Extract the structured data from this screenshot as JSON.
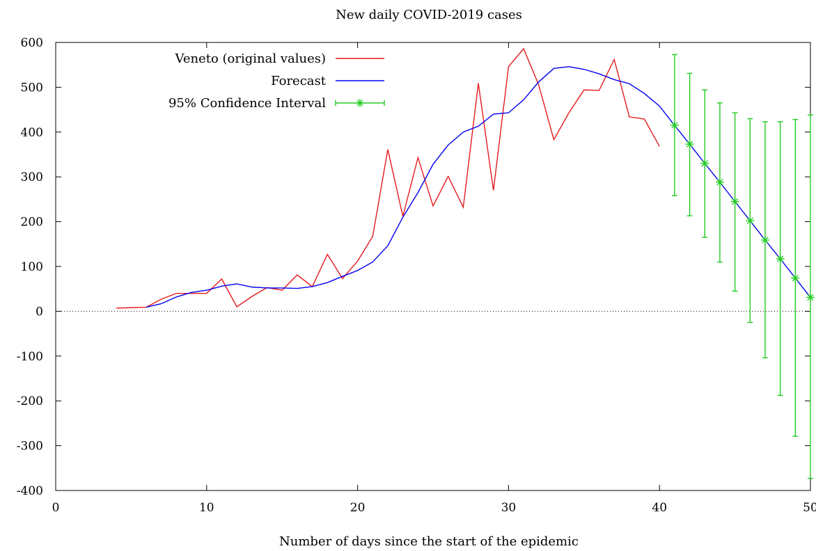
{
  "chart_data": {
    "type": "line",
    "title": "New daily COVID-2019 cases",
    "xlabel": "Number of days since the start of the epidemic",
    "ylabel": "",
    "xlim": [
      0,
      50
    ],
    "ylim": [
      -400,
      600
    ],
    "xticks": [
      "0",
      "10",
      "20",
      "30",
      "40",
      "50"
    ],
    "yticks": [
      "600",
      "500",
      "400",
      "300",
      "200",
      "100",
      "0",
      "-100",
      "-200",
      "-300",
      "-400"
    ],
    "grid": false,
    "legend_position": "top-left",
    "series": [
      {
        "name": "Veneto (original values)",
        "color": "#e41a1c",
        "x": [
          4,
          5,
          6,
          7,
          8,
          9,
          10,
          11,
          12,
          13,
          14,
          15,
          16,
          17,
          18,
          19,
          20,
          21,
          22,
          23,
          24,
          25,
          26,
          27,
          28,
          29,
          30,
          31,
          32,
          33,
          34,
          35,
          36,
          37,
          38,
          39,
          40
        ],
        "y": [
          7,
          8,
          9,
          27,
          40,
          40,
          40,
          72,
          10,
          33,
          53,
          47,
          81,
          55,
          127,
          73,
          112,
          167,
          361,
          212,
          343,
          235,
          301,
          232,
          509,
          270,
          546,
          586,
          505,
          383,
          443,
          494,
          493,
          562,
          434,
          429,
          368
        ]
      },
      {
        "name": "Forecast",
        "color": "#0000ee",
        "x": [
          6,
          7,
          8,
          9,
          10,
          11,
          12,
          13,
          14,
          15,
          16,
          17,
          18,
          19,
          20,
          21,
          22,
          23,
          24,
          25,
          26,
          27,
          28,
          29,
          30,
          31,
          32,
          33,
          34,
          35,
          36,
          37,
          38,
          39,
          40,
          41,
          42,
          43,
          44,
          45,
          46,
          47,
          48,
          49,
          50
        ],
        "y": [
          9,
          17,
          32,
          42,
          47,
          56,
          61,
          54,
          52,
          52,
          51,
          55,
          64,
          78,
          91,
          110,
          146,
          210,
          265,
          328,
          371,
          400,
          413,
          440,
          443,
          472,
          512,
          542,
          546,
          540,
          530,
          517,
          508,
          486,
          458,
          415,
          373,
          330,
          288,
          245,
          202,
          159,
          117,
          74,
          31
        ]
      },
      {
        "name": "95% Confidence Interval",
        "color": "#22cc22",
        "x": [
          41,
          42,
          43,
          44,
          45,
          46,
          47,
          48,
          49,
          50
        ],
        "y": [
          415,
          373,
          330,
          288,
          245,
          202,
          159,
          117,
          74,
          31
        ],
        "lower": [
          258,
          213,
          165,
          110,
          45,
          -25,
          -104,
          -188,
          -279,
          -373
        ],
        "upper": [
          573,
          531,
          494,
          465,
          443,
          430,
          423,
          423,
          428,
          438
        ]
      }
    ]
  }
}
